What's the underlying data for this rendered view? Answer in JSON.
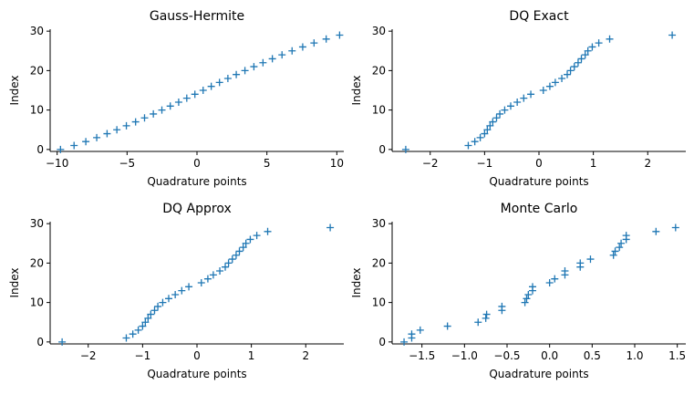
{
  "colors": {
    "marker": "#1f77b4",
    "axis": "#000000"
  },
  "chart_data": [
    {
      "type": "scatter",
      "marker": "plus",
      "title": "Gauss-Hermite",
      "xlabel": "Quadrature points",
      "ylabel": "Index",
      "xlim": [
        -10.5,
        10.5
      ],
      "ylim": [
        -0.5,
        30.5
      ],
      "xticks": [
        -10,
        -5,
        0,
        5,
        10
      ],
      "xtick_labels": [
        "−10",
        "−5",
        "0",
        "5",
        "10"
      ],
      "yticks": [
        0,
        10,
        20,
        30
      ],
      "ytick_labels": [
        "0",
        "10",
        "20",
        "30"
      ],
      "x": [
        -9.76,
        -8.79,
        -7.95,
        -7.17,
        -6.43,
        -5.73,
        -5.05,
        -4.39,
        -3.75,
        -3.12,
        -2.51,
        -1.91,
        -1.31,
        -0.73,
        -0.15,
        0.44,
        1.02,
        1.61,
        2.21,
        2.81,
        3.43,
        4.07,
        4.72,
        5.39,
        6.08,
        6.8,
        7.56,
        8.37,
        9.24,
        10.2
      ],
      "y": [
        0,
        1,
        2,
        3,
        4,
        5,
        6,
        7,
        8,
        9,
        10,
        11,
        12,
        13,
        14,
        15,
        16,
        17,
        18,
        19,
        20,
        21,
        22,
        23,
        24,
        25,
        26,
        27,
        28,
        29
      ]
    },
    {
      "type": "scatter",
      "marker": "plus",
      "title": "DQ Exact",
      "xlabel": "Quadrature points",
      "ylabel": "Index",
      "xlim": [
        -2.7,
        2.7
      ],
      "ylim": [
        -0.5,
        30.5
      ],
      "xticks": [
        -2,
        -1,
        0,
        1,
        2
      ],
      "xtick_labels": [
        "−2",
        "−1",
        "0",
        "1",
        "2"
      ],
      "yticks": [
        0,
        10,
        20,
        30
      ],
      "ytick_labels": [
        "0",
        "10",
        "20",
        "30"
      ],
      "x": [
        -2.45,
        -1.3,
        -1.18,
        -1.08,
        -1.0,
        -0.95,
        -0.9,
        -0.85,
        -0.78,
        -0.72,
        -0.63,
        -0.52,
        -0.4,
        -0.28,
        -0.15,
        0.08,
        0.2,
        0.3,
        0.42,
        0.52,
        0.58,
        0.65,
        0.72,
        0.78,
        0.85,
        0.9,
        0.98,
        1.1,
        1.3,
        2.45
      ],
      "y": [
        0,
        1,
        2,
        3,
        4,
        5,
        6,
        7,
        8,
        9,
        10,
        11,
        12,
        13,
        14,
        15,
        16,
        17,
        18,
        19,
        20,
        21,
        22,
        23,
        24,
        25,
        26,
        27,
        28,
        29
      ]
    },
    {
      "type": "scatter",
      "marker": "plus",
      "title": "DQ Approx",
      "xlabel": "Quadrature points",
      "ylabel": "Index",
      "xlim": [
        -2.7,
        2.7
      ],
      "ylim": [
        -0.5,
        30.5
      ],
      "xticks": [
        -2,
        -1,
        0,
        1,
        2
      ],
      "xtick_labels": [
        "−2",
        "−1",
        "0",
        "1",
        "2"
      ],
      "yticks": [
        0,
        10,
        20,
        30
      ],
      "ytick_labels": [
        "0",
        "10",
        "20",
        "30"
      ],
      "x": [
        -2.48,
        -1.3,
        -1.18,
        -1.08,
        -1.0,
        -0.95,
        -0.9,
        -0.85,
        -0.78,
        -0.72,
        -0.63,
        -0.52,
        -0.4,
        -0.28,
        -0.15,
        0.08,
        0.2,
        0.3,
        0.42,
        0.52,
        0.58,
        0.65,
        0.72,
        0.78,
        0.85,
        0.9,
        0.98,
        1.1,
        1.3,
        2.45
      ],
      "y": [
        0,
        1,
        2,
        3,
        4,
        5,
        6,
        7,
        8,
        9,
        10,
        11,
        12,
        13,
        14,
        15,
        16,
        17,
        18,
        19,
        20,
        21,
        22,
        23,
        24,
        25,
        26,
        27,
        28,
        29
      ]
    },
    {
      "type": "scatter",
      "marker": "plus",
      "title": "Monte Carlo",
      "xlabel": "Quadrature points",
      "ylabel": "Index",
      "xlim": [
        -1.85,
        1.6
      ],
      "ylim": [
        -0.5,
        30.5
      ],
      "xticks": [
        -1.5,
        -1.0,
        -0.5,
        0.0,
        0.5,
        1.0,
        1.5
      ],
      "xtick_labels": [
        "−1.5",
        "−1.0",
        "−0.5",
        "0.0",
        "0.5",
        "1.0",
        "1.5"
      ],
      "yticks": [
        0,
        10,
        20,
        30
      ],
      "ytick_labels": [
        "0",
        "10",
        "20",
        "30"
      ],
      "x": [
        -1.71,
        -1.62,
        -1.62,
        -1.52,
        -1.2,
        -0.84,
        -0.75,
        -0.74,
        -0.56,
        -0.56,
        -0.29,
        -0.27,
        -0.25,
        -0.2,
        -0.2,
        0.0,
        0.06,
        0.18,
        0.18,
        0.36,
        0.36,
        0.48,
        0.75,
        0.77,
        0.82,
        0.84,
        0.9,
        0.9,
        1.25,
        1.48
      ],
      "y": [
        0,
        1,
        2,
        3,
        4,
        5,
        6,
        7,
        8,
        9,
        10,
        11,
        12,
        13,
        14,
        15,
        16,
        17,
        18,
        19,
        20,
        21,
        22,
        23,
        24,
        25,
        26,
        27,
        28,
        29
      ]
    }
  ]
}
